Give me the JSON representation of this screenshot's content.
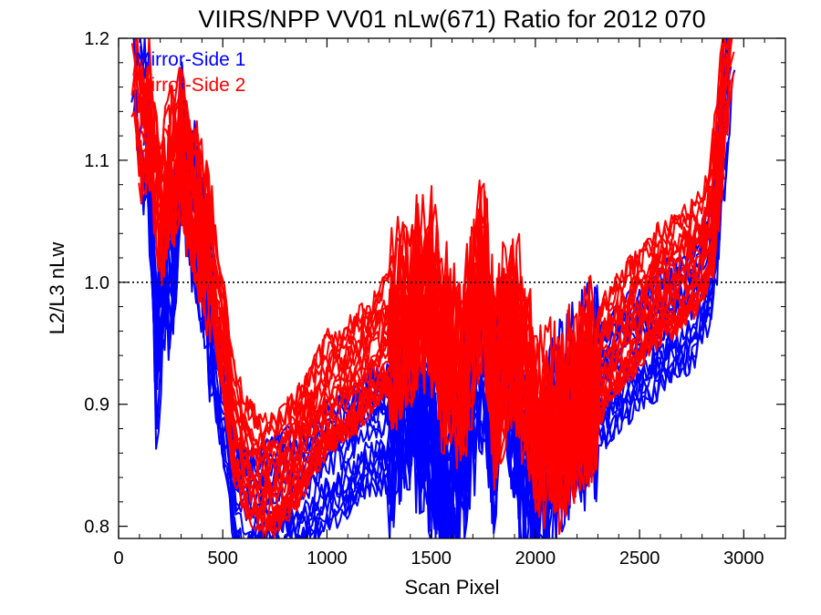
{
  "chart_data": {
    "type": "line",
    "title": "VIIRS/NPP VV01 nLw(671) Ratio for 2012 070",
    "xlabel": "Scan Pixel",
    "ylabel": "L2/L3 nLw",
    "xlim": [
      0,
      3200
    ],
    "ylim": [
      0.79,
      1.2
    ],
    "xticks": [
      "0",
      "500",
      "1000",
      "1500",
      "2000",
      "2500",
      "3000"
    ],
    "yticks": [
      "0.8",
      "0.9",
      "1.0",
      "1.1",
      "1.2"
    ],
    "reference_line": {
      "y": 1.0,
      "style": "dotted",
      "color": "#000000"
    },
    "legend": {
      "placement": "top-left"
    },
    "series": [
      {
        "name": "Mirror-Side 1",
        "color": "#0000ff",
        "line_count": 18,
        "profile": [
          [
            60,
            1.2
          ],
          [
            100,
            1.15
          ],
          [
            150,
            1.1
          ],
          [
            180,
            0.93
          ],
          [
            220,
            1.02
          ],
          [
            260,
            1.0
          ],
          [
            300,
            1.12
          ],
          [
            340,
            1.07
          ],
          [
            380,
            1.05
          ],
          [
            430,
            0.99
          ],
          [
            470,
            0.93
          ],
          [
            520,
            0.89
          ],
          [
            560,
            0.82
          ],
          [
            620,
            0.81
          ],
          [
            700,
            0.82
          ],
          [
            800,
            0.83
          ],
          [
            900,
            0.83
          ],
          [
            1000,
            0.85
          ],
          [
            1100,
            0.86
          ],
          [
            1200,
            0.88
          ],
          [
            1300,
            0.88
          ],
          [
            1400,
            0.91
          ],
          [
            1500,
            0.88
          ],
          [
            1550,
            0.83
          ],
          [
            1650,
            0.87
          ],
          [
            1750,
            0.95
          ],
          [
            1800,
            0.88
          ],
          [
            1850,
            0.95
          ],
          [
            1950,
            0.84
          ],
          [
            2050,
            0.86
          ],
          [
            2150,
            0.89
          ],
          [
            2250,
            0.91
          ],
          [
            2350,
            0.92
          ],
          [
            2450,
            0.94
          ],
          [
            2550,
            0.95
          ],
          [
            2650,
            0.97
          ],
          [
            2750,
            0.98
          ],
          [
            2850,
            1.02
          ],
          [
            2900,
            1.12
          ],
          [
            2950,
            1.2
          ]
        ]
      },
      {
        "name": "Mirror-Side 2",
        "color": "#ff0000",
        "line_count": 22,
        "profile": [
          [
            60,
            1.2
          ],
          [
            100,
            1.14
          ],
          [
            150,
            1.13
          ],
          [
            200,
            1.07
          ],
          [
            250,
            1.09
          ],
          [
            300,
            1.12
          ],
          [
            350,
            1.08
          ],
          [
            400,
            1.05
          ],
          [
            450,
            1.01
          ],
          [
            500,
            0.96
          ],
          [
            550,
            0.89
          ],
          [
            600,
            0.86
          ],
          [
            700,
            0.84
          ],
          [
            800,
            0.85
          ],
          [
            900,
            0.88
          ],
          [
            1000,
            0.91
          ],
          [
            1100,
            0.92
          ],
          [
            1200,
            0.94
          ],
          [
            1300,
            0.96
          ],
          [
            1400,
            0.98
          ],
          [
            1500,
            1.0
          ],
          [
            1550,
            0.95
          ],
          [
            1650,
            0.93
          ],
          [
            1750,
            1.02
          ],
          [
            1800,
            0.92
          ],
          [
            1900,
            0.97
          ],
          [
            2000,
            0.89
          ],
          [
            2100,
            0.88
          ],
          [
            2200,
            0.91
          ],
          [
            2300,
            0.93
          ],
          [
            2400,
            0.96
          ],
          [
            2500,
            0.98
          ],
          [
            2600,
            1.0
          ],
          [
            2700,
            1.01
          ],
          [
            2800,
            1.03
          ],
          [
            2850,
            1.06
          ],
          [
            2900,
            1.14
          ],
          [
            2950,
            1.2
          ]
        ]
      }
    ]
  }
}
